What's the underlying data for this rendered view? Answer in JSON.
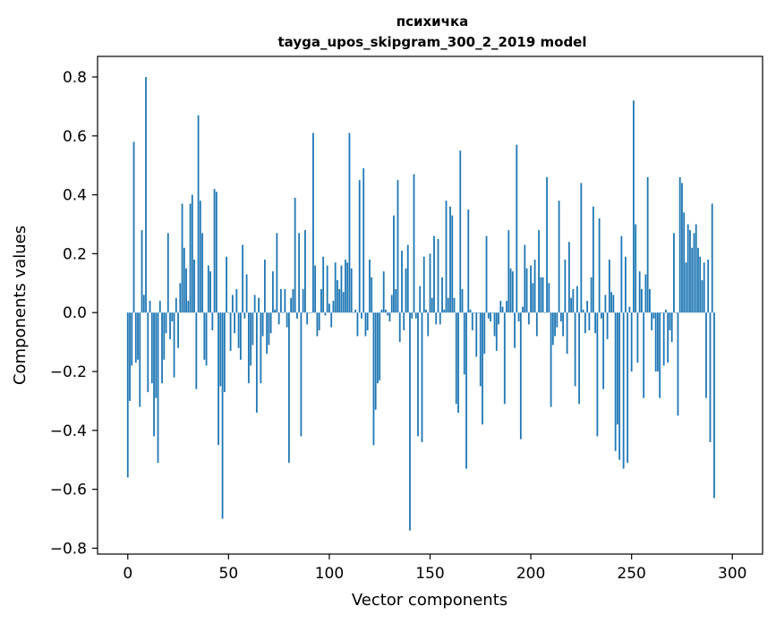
{
  "chart_data": {
    "type": "bar",
    "title_line1": "психичка",
    "title_line2": "tayga_upos_skipgram_300_2_2019 model",
    "xlabel": "Vector components",
    "ylabel": "Components values",
    "xlim": [
      -15,
      315
    ],
    "ylim": [
      -0.82,
      0.87
    ],
    "xticks": [
      0,
      50,
      100,
      150,
      200,
      250,
      300
    ],
    "xtick_labels": [
      "0",
      "50",
      "100",
      "150",
      "200",
      "250",
      "300"
    ],
    "yticks": [
      -0.8,
      -0.6,
      -0.4,
      -0.2,
      0.0,
      0.2,
      0.4,
      0.6,
      0.8
    ],
    "ytick_labels": [
      "−0.8",
      "−0.6",
      "−0.4",
      "−0.2",
      "0.0",
      "0.2",
      "0.4",
      "0.6",
      "0.8"
    ],
    "grid": false,
    "bar_color": "#1f77b4",
    "values": [
      -0.56,
      -0.3,
      -0.18,
      0.58,
      -0.17,
      -0.16,
      -0.32,
      0.28,
      0.06,
      0.8,
      -0.27,
      0.04,
      -0.24,
      -0.42,
      -0.29,
      -0.51,
      0.04,
      -0.24,
      -0.16,
      -0.07,
      0.27,
      -0.09,
      -0.03,
      -0.22,
      0.05,
      -0.12,
      0.1,
      0.37,
      0.22,
      0.15,
      0.04,
      0.37,
      0.4,
      0.18,
      -0.26,
      0.67,
      0.38,
      0.27,
      -0.16,
      -0.18,
      0.16,
      0.14,
      -0.06,
      0.42,
      0.41,
      -0.45,
      -0.25,
      -0.7,
      -0.27,
      0.19,
      0.0,
      -0.13,
      0.06,
      -0.07,
      0.08,
      -0.12,
      -0.16,
      0.23,
      -0.02,
      0.13,
      -0.24,
      -0.18,
      -0.11,
      0.06,
      -0.34,
      0.05,
      -0.24,
      -0.08,
      0.18,
      -0.14,
      -0.11,
      -0.07,
      0.14,
      0.01,
      0.27,
      -0.04,
      0.08,
      0.0,
      0.08,
      -0.05,
      -0.51,
      0.05,
      0.08,
      0.39,
      -0.02,
      0.27,
      -0.42,
      0.08,
      0.28,
      -0.04,
      0.0,
      0.0,
      0.61,
      0.16,
      -0.08,
      -0.06,
      0.08,
      0.19,
      -0.01,
      0.16,
      0.03,
      -0.05,
      0.04,
      0.17,
      0.11,
      0.08,
      0.16,
      0.07,
      0.18,
      0.17,
      0.61,
      0.15,
      0.0,
      0.01,
      -0.08,
      0.45,
      -0.02,
      0.49,
      -0.08,
      -0.06,
      0.18,
      0.12,
      -0.45,
      -0.33,
      -0.24,
      -0.23,
      0.01,
      0.14,
      0.01,
      -0.01,
      -0.03,
      0.06,
      0.33,
      0.08,
      0.45,
      -0.1,
      0.21,
      -0.06,
      0.15,
      0.23,
      -0.74,
      -0.02,
      0.47,
      -0.02,
      -0.42,
      0.09,
      -0.44,
      0.19,
      0.01,
      -0.08,
      0.2,
      0.05,
      0.26,
      -0.04,
      0.25,
      -0.04,
      0.12,
      0.01,
      0.38,
      0.05,
      0.36,
      0.33,
      0.05,
      -0.31,
      -0.34,
      0.55,
      0.08,
      -0.21,
      -0.53,
      0.35,
      0.01,
      -0.06,
      0.0,
      -0.15,
      0.0,
      -0.25,
      -0.38,
      -0.14,
      0.26,
      -0.02,
      -0.03,
      0.0,
      -0.08,
      -0.13,
      -0.04,
      0.04,
      0.02,
      -0.31,
      0.04,
      0.28,
      0.15,
      0.14,
      -0.12,
      0.57,
      -0.03,
      -0.43,
      0.02,
      0.23,
      0.15,
      -0.04,
      0.16,
      0.1,
      0.18,
      -0.08,
      0.28,
      0.12,
      0.12,
      0.0,
      0.46,
      0.1,
      -0.32,
      -0.11,
      -0.08,
      -0.05,
      0.38,
      -0.03,
      -0.08,
      0.18,
      -0.14,
      0.24,
      0.05,
      0.08,
      -0.25,
      0.09,
      -0.31,
      0.44,
      0.01,
      -0.07,
      0.04,
      -0.06,
      0.12,
      0.36,
      -0.07,
      -0.42,
      0.32,
      -0.02,
      -0.26,
      0.06,
      -0.09,
      0.18,
      0.07,
      0.06,
      -0.47,
      -0.38,
      -0.5,
      0.26,
      -0.53,
      0.19,
      -0.51,
      0.02,
      -0.2,
      0.72,
      0.3,
      -0.17,
      0.14,
      0.08,
      -0.29,
      0.13,
      0.46,
      0.08,
      -0.06,
      -0.02,
      -0.2,
      -0.2,
      -0.29,
      0.0,
      -0.18,
      0.01,
      -0.17,
      -0.06,
      -0.1,
      0.27,
      0.0,
      -0.35,
      0.46,
      0.44,
      0.34,
      0.17,
      0.3,
      0.28,
      0.22,
      0.27,
      0.3,
      0.22,
      0.19,
      0.11,
      0.17,
      -0.29,
      0.18,
      -0.44,
      0.37,
      -0.63
    ]
  }
}
